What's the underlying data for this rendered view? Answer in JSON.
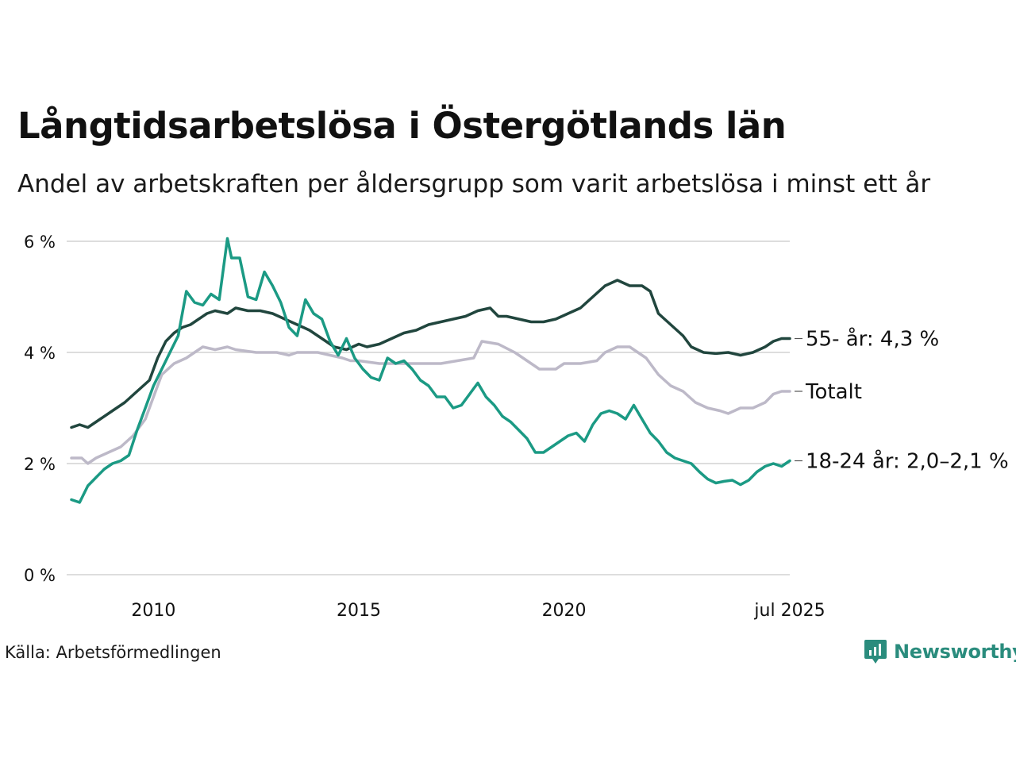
{
  "title": "Långtidsarbetslösa i Östergötlands län",
  "subtitle": "Andel av arbetskraften per åldersgrupp som varit arbetslösa i minst ett år",
  "source": "Källa: Arbetsförmedlingen",
  "brand": "Newsworthy",
  "colors": {
    "s55": "#21463e",
    "total": "#bdb9c8",
    "y1824": "#1b9a84",
    "grid": "#dddddd",
    "brand": "#2a8c7d"
  },
  "chart_data": {
    "type": "line",
    "ylim": [
      0,
      6
    ],
    "xlim": [
      2008.0,
      2025.5
    ],
    "y_ticks": [
      {
        "value": 0,
        "label": "0 %"
      },
      {
        "value": 2,
        "label": "2 %"
      },
      {
        "value": 4,
        "label": "4 %"
      },
      {
        "value": 6,
        "label": "6 %"
      }
    ],
    "x_ticks": [
      {
        "value": 2010,
        "label": "2010"
      },
      {
        "value": 2015,
        "label": "2015"
      },
      {
        "value": 2020,
        "label": "2020"
      },
      {
        "value": 2025.5,
        "label": "jul 2025"
      }
    ],
    "grid": true,
    "series": [
      {
        "key": "total",
        "color": "#bdb9c8",
        "end_label": "Totalt",
        "points": [
          [
            2008.0,
            2.1
          ],
          [
            2008.25,
            2.1
          ],
          [
            2008.4,
            2.0
          ],
          [
            2008.6,
            2.1
          ],
          [
            2008.9,
            2.2
          ],
          [
            2009.2,
            2.3
          ],
          [
            2009.5,
            2.5
          ],
          [
            2009.8,
            2.8
          ],
          [
            2010.0,
            3.2
          ],
          [
            2010.2,
            3.6
          ],
          [
            2010.5,
            3.8
          ],
          [
            2010.8,
            3.9
          ],
          [
            2011.0,
            4.0
          ],
          [
            2011.2,
            4.1
          ],
          [
            2011.5,
            4.05
          ],
          [
            2011.8,
            4.1
          ],
          [
            2012.0,
            4.05
          ],
          [
            2012.5,
            4.0
          ],
          [
            2013.0,
            4.0
          ],
          [
            2013.3,
            3.95
          ],
          [
            2013.5,
            4.0
          ],
          [
            2014.0,
            4.0
          ],
          [
            2014.3,
            3.95
          ],
          [
            2014.6,
            3.9
          ],
          [
            2014.8,
            3.85
          ],
          [
            2015.0,
            3.85
          ],
          [
            2015.5,
            3.8
          ],
          [
            2016.0,
            3.8
          ],
          [
            2016.5,
            3.8
          ],
          [
            2017.0,
            3.8
          ],
          [
            2017.4,
            3.85
          ],
          [
            2017.8,
            3.9
          ],
          [
            2018.0,
            4.2
          ],
          [
            2018.4,
            4.15
          ],
          [
            2018.8,
            4.0
          ],
          [
            2019.0,
            3.9
          ],
          [
            2019.4,
            3.7
          ],
          [
            2019.8,
            3.7
          ],
          [
            2020.0,
            3.8
          ],
          [
            2020.4,
            3.8
          ],
          [
            2020.8,
            3.85
          ],
          [
            2021.0,
            4.0
          ],
          [
            2021.3,
            4.1
          ],
          [
            2021.6,
            4.1
          ],
          [
            2022.0,
            3.9
          ],
          [
            2022.3,
            3.6
          ],
          [
            2022.6,
            3.4
          ],
          [
            2022.9,
            3.3
          ],
          [
            2023.2,
            3.1
          ],
          [
            2023.5,
            3.0
          ],
          [
            2023.8,
            2.95
          ],
          [
            2024.0,
            2.9
          ],
          [
            2024.3,
            3.0
          ],
          [
            2024.6,
            3.0
          ],
          [
            2024.9,
            3.1
          ],
          [
            2025.1,
            3.25
          ],
          [
            2025.3,
            3.3
          ],
          [
            2025.5,
            3.3
          ]
        ]
      },
      {
        "key": "s55",
        "color": "#21463e",
        "end_label": "55- år: 4,3 %",
        "points": [
          [
            2008.0,
            2.65
          ],
          [
            2008.2,
            2.7
          ],
          [
            2008.4,
            2.65
          ],
          [
            2008.7,
            2.8
          ],
          [
            2009.0,
            2.95
          ],
          [
            2009.3,
            3.1
          ],
          [
            2009.6,
            3.3
          ],
          [
            2009.9,
            3.5
          ],
          [
            2010.1,
            3.9
          ],
          [
            2010.3,
            4.2
          ],
          [
            2010.5,
            4.35
          ],
          [
            2010.7,
            4.45
          ],
          [
            2010.9,
            4.5
          ],
          [
            2011.1,
            4.6
          ],
          [
            2011.3,
            4.7
          ],
          [
            2011.5,
            4.75
          ],
          [
            2011.8,
            4.7
          ],
          [
            2012.0,
            4.8
          ],
          [
            2012.3,
            4.75
          ],
          [
            2012.6,
            4.75
          ],
          [
            2012.9,
            4.7
          ],
          [
            2013.2,
            4.6
          ],
          [
            2013.5,
            4.5
          ],
          [
            2013.8,
            4.4
          ],
          [
            2014.1,
            4.25
          ],
          [
            2014.4,
            4.1
          ],
          [
            2014.7,
            4.05
          ],
          [
            2015.0,
            4.15
          ],
          [
            2015.2,
            4.1
          ],
          [
            2015.5,
            4.15
          ],
          [
            2015.8,
            4.25
          ],
          [
            2016.1,
            4.35
          ],
          [
            2016.4,
            4.4
          ],
          [
            2016.7,
            4.5
          ],
          [
            2017.0,
            4.55
          ],
          [
            2017.3,
            4.6
          ],
          [
            2017.6,
            4.65
          ],
          [
            2017.9,
            4.75
          ],
          [
            2018.2,
            4.8
          ],
          [
            2018.4,
            4.65
          ],
          [
            2018.6,
            4.65
          ],
          [
            2018.9,
            4.6
          ],
          [
            2019.2,
            4.55
          ],
          [
            2019.5,
            4.55
          ],
          [
            2019.8,
            4.6
          ],
          [
            2020.1,
            4.7
          ],
          [
            2020.4,
            4.8
          ],
          [
            2020.7,
            5.0
          ],
          [
            2021.0,
            5.2
          ],
          [
            2021.3,
            5.3
          ],
          [
            2021.6,
            5.2
          ],
          [
            2021.9,
            5.2
          ],
          [
            2022.1,
            5.1
          ],
          [
            2022.3,
            4.7
          ],
          [
            2022.6,
            4.5
          ],
          [
            2022.9,
            4.3
          ],
          [
            2023.1,
            4.1
          ],
          [
            2023.4,
            4.0
          ],
          [
            2023.7,
            3.98
          ],
          [
            2024.0,
            4.0
          ],
          [
            2024.3,
            3.95
          ],
          [
            2024.6,
            4.0
          ],
          [
            2024.9,
            4.1
          ],
          [
            2025.1,
            4.2
          ],
          [
            2025.3,
            4.25
          ],
          [
            2025.5,
            4.25
          ]
        ]
      },
      {
        "key": "y1824",
        "color": "#1b9a84",
        "end_label": "18-24 år: 2,0–2,1 %",
        "points": [
          [
            2008.0,
            1.35
          ],
          [
            2008.2,
            1.3
          ],
          [
            2008.4,
            1.6
          ],
          [
            2008.6,
            1.75
          ],
          [
            2008.8,
            1.9
          ],
          [
            2009.0,
            2.0
          ],
          [
            2009.2,
            2.05
          ],
          [
            2009.4,
            2.15
          ],
          [
            2009.6,
            2.6
          ],
          [
            2009.8,
            3.0
          ],
          [
            2010.0,
            3.4
          ],
          [
            2010.2,
            3.7
          ],
          [
            2010.4,
            4.0
          ],
          [
            2010.6,
            4.3
          ],
          [
            2010.8,
            5.1
          ],
          [
            2011.0,
            4.9
          ],
          [
            2011.2,
            4.85
          ],
          [
            2011.4,
            5.05
          ],
          [
            2011.6,
            4.95
          ],
          [
            2011.8,
            6.05
          ],
          [
            2011.9,
            5.7
          ],
          [
            2012.1,
            5.7
          ],
          [
            2012.3,
            5.0
          ],
          [
            2012.5,
            4.95
          ],
          [
            2012.7,
            5.45
          ],
          [
            2012.9,
            5.2
          ],
          [
            2013.1,
            4.9
          ],
          [
            2013.3,
            4.45
          ],
          [
            2013.5,
            4.3
          ],
          [
            2013.7,
            4.95
          ],
          [
            2013.9,
            4.7
          ],
          [
            2014.1,
            4.6
          ],
          [
            2014.3,
            4.2
          ],
          [
            2014.5,
            3.95
          ],
          [
            2014.7,
            4.25
          ],
          [
            2014.9,
            3.9
          ],
          [
            2015.1,
            3.7
          ],
          [
            2015.3,
            3.55
          ],
          [
            2015.5,
            3.5
          ],
          [
            2015.7,
            3.9
          ],
          [
            2015.9,
            3.8
          ],
          [
            2016.1,
            3.85
          ],
          [
            2016.3,
            3.7
          ],
          [
            2016.5,
            3.5
          ],
          [
            2016.7,
            3.4
          ],
          [
            2016.9,
            3.2
          ],
          [
            2017.1,
            3.2
          ],
          [
            2017.3,
            3.0
          ],
          [
            2017.5,
            3.05
          ],
          [
            2017.7,
            3.25
          ],
          [
            2017.9,
            3.45
          ],
          [
            2018.1,
            3.2
          ],
          [
            2018.3,
            3.05
          ],
          [
            2018.5,
            2.85
          ],
          [
            2018.7,
            2.75
          ],
          [
            2018.9,
            2.6
          ],
          [
            2019.1,
            2.45
          ],
          [
            2019.3,
            2.2
          ],
          [
            2019.5,
            2.2
          ],
          [
            2019.7,
            2.3
          ],
          [
            2019.9,
            2.4
          ],
          [
            2020.1,
            2.5
          ],
          [
            2020.3,
            2.55
          ],
          [
            2020.5,
            2.4
          ],
          [
            2020.7,
            2.7
          ],
          [
            2020.9,
            2.9
          ],
          [
            2021.1,
            2.95
          ],
          [
            2021.3,
            2.9
          ],
          [
            2021.5,
            2.8
          ],
          [
            2021.7,
            3.05
          ],
          [
            2021.9,
            2.8
          ],
          [
            2022.1,
            2.55
          ],
          [
            2022.3,
            2.4
          ],
          [
            2022.5,
            2.2
          ],
          [
            2022.7,
            2.1
          ],
          [
            2022.9,
            2.05
          ],
          [
            2023.1,
            2.0
          ],
          [
            2023.3,
            1.85
          ],
          [
            2023.5,
            1.72
          ],
          [
            2023.7,
            1.65
          ],
          [
            2023.9,
            1.68
          ],
          [
            2024.1,
            1.7
          ],
          [
            2024.3,
            1.62
          ],
          [
            2024.5,
            1.7
          ],
          [
            2024.7,
            1.85
          ],
          [
            2024.9,
            1.95
          ],
          [
            2025.1,
            2.0
          ],
          [
            2025.3,
            1.95
          ],
          [
            2025.5,
            2.05
          ]
        ]
      }
    ]
  }
}
